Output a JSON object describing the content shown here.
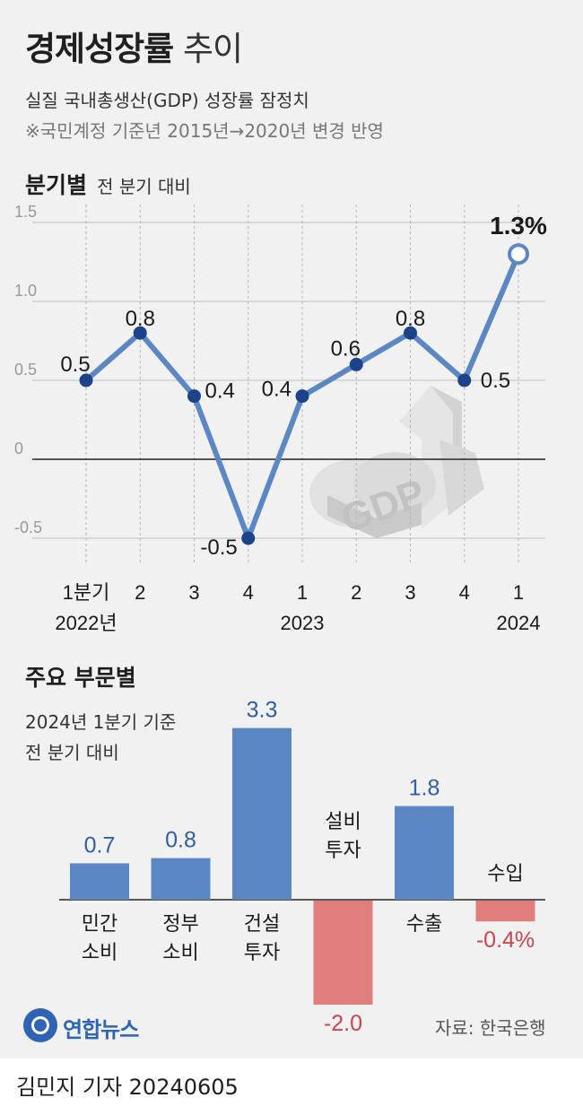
{
  "header": {
    "title_bold": "경제성장률",
    "title_light": "추이",
    "subtitle": "실질 국내총생산(GDP) 성장률 잠정치",
    "note": "※국민계정 기준년 2015년→2020년 변경 반영"
  },
  "quarterly": {
    "heading": "분기별",
    "subheading": "전 분기 대비"
  },
  "breakdown": {
    "heading": "주요 부문별",
    "desc_line1": "2024년 1분기 기준",
    "desc_line2": "전 분기 대비"
  },
  "footer": {
    "logo_text": "연합뉴스",
    "source": "자료: 한국은행",
    "byline": "김민지 기자  20240605"
  },
  "colors": {
    "line": "#5b87c5",
    "positive": "#5b87c5",
    "negative": "#e07e7b",
    "positive_label": "#2e5fa8",
    "negative_label": "#c7464b"
  },
  "chart_data": [
    {
      "type": "line",
      "title": "분기별",
      "subtitle": "전 분기 대비",
      "categories": [
        "1분기",
        "2",
        "3",
        "4",
        "1",
        "2",
        "3",
        "4",
        "1"
      ],
      "year_labels": [
        {
          "index": 0,
          "label": "2022년"
        },
        {
          "index": 4,
          "label": "2023"
        },
        {
          "index": 8,
          "label": "2024"
        }
      ],
      "values": [
        0.5,
        0.8,
        0.4,
        -0.5,
        0.4,
        0.6,
        0.8,
        0.5,
        1.3
      ],
      "value_labels": [
        "0.5",
        "0.8",
        "0.4",
        "-0.5",
        "0.4",
        "0.6",
        "0.8",
        "0.5",
        "1.3%"
      ],
      "ylim": [
        -0.5,
        1.5
      ],
      "yticks": [
        -0.5,
        0,
        0.5,
        1.0,
        1.5
      ],
      "ytick_labels": [
        "-0.5",
        "0",
        "0.5",
        "1.0",
        "1.5"
      ],
      "grid": true
    },
    {
      "type": "bar",
      "title": "주요 부문별",
      "subtitle": "2024년 1분기 기준 전 분기 대비",
      "categories": [
        [
          "민간",
          "소비"
        ],
        [
          "정부",
          "소비"
        ],
        [
          "건설",
          "투자"
        ],
        [
          "설비",
          "투자"
        ],
        [
          "수출"
        ],
        [
          "수입"
        ]
      ],
      "values": [
        0.7,
        0.8,
        3.3,
        -2.0,
        1.8,
        -0.4
      ],
      "value_labels": [
        "0.7",
        "0.8",
        "3.3",
        "-2.0",
        "1.8",
        "-0.4%"
      ]
    }
  ]
}
